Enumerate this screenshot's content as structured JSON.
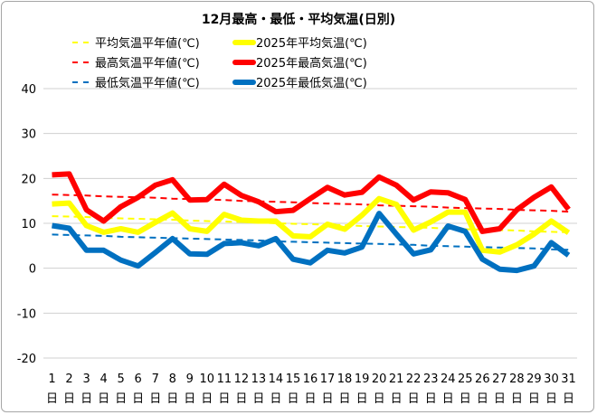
{
  "chart_data": {
    "type": "line",
    "title": "12月最高・最低・平均気温(日別)",
    "ylim": [
      -20,
      40
    ],
    "yticks": [
      -20,
      -10,
      0,
      10,
      20,
      30,
      40
    ],
    "grid": true,
    "legend_placement": "top",
    "categories": [
      "1",
      "2",
      "3",
      "4",
      "5",
      "6",
      "7",
      "8",
      "9",
      "10",
      "11",
      "12",
      "13",
      "14",
      "15",
      "16",
      "17",
      "18",
      "19",
      "20",
      "21",
      "22",
      "23",
      "24",
      "25",
      "26",
      "27",
      "28",
      "29",
      "30",
      "31"
    ],
    "category_suffix": "日",
    "series": [
      {
        "name": "平均気温平年値(℃)",
        "style": "dashed",
        "color": "#ffff00",
        "values": [
          11.6,
          11.5,
          11.4,
          11.2,
          11.1,
          11.0,
          10.9,
          10.8,
          10.6,
          10.5,
          10.4,
          10.3,
          10.2,
          10.0,
          9.9,
          9.8,
          9.7,
          9.6,
          9.4,
          9.3,
          9.2,
          9.1,
          9.0,
          8.8,
          8.7,
          8.6,
          8.5,
          8.4,
          8.2,
          8.1,
          8.0
        ]
      },
      {
        "name": "2025年平均気温(℃)",
        "style": "solid",
        "color": "#ffff00",
        "values": [
          14.3,
          14.5,
          9.5,
          8.0,
          8.8,
          8.0,
          10.2,
          12.3,
          8.8,
          8.2,
          12.0,
          10.7,
          10.5,
          10.5,
          7.2,
          7.0,
          9.8,
          8.7,
          11.8,
          15.5,
          14.2,
          8.5,
          10.3,
          12.5,
          12.5,
          4.0,
          3.6,
          5.2,
          7.6,
          10.5,
          7.9
        ]
      },
      {
        "name": "最高気温平年値(℃)",
        "style": "dashed",
        "color": "#ff0000",
        "values": [
          16.4,
          16.3,
          16.2,
          16.0,
          15.9,
          15.8,
          15.7,
          15.5,
          15.4,
          15.3,
          15.2,
          15.0,
          14.9,
          14.8,
          14.7,
          14.5,
          14.4,
          14.3,
          14.2,
          14.0,
          13.9,
          13.8,
          13.7,
          13.5,
          13.4,
          13.3,
          13.2,
          13.0,
          12.9,
          12.8,
          12.6
        ]
      },
      {
        "name": "2025年最高気温(℃)",
        "style": "solid",
        "color": "#ff0000",
        "values": [
          20.8,
          21.0,
          13.0,
          10.5,
          13.7,
          15.8,
          18.5,
          19.7,
          15.2,
          15.3,
          18.7,
          16.2,
          14.8,
          12.6,
          12.9,
          15.5,
          18.0,
          16.3,
          16.9,
          20.3,
          18.5,
          15.2,
          17.0,
          16.8,
          15.3,
          8.2,
          8.8,
          13.0,
          15.8,
          18.1,
          13.1
        ]
      },
      {
        "name": "最低気温平年値(℃)",
        "style": "dashed",
        "color": "#0070c0",
        "values": [
          7.5,
          7.4,
          7.3,
          7.2,
          7.0,
          6.9,
          6.8,
          6.7,
          6.6,
          6.5,
          6.4,
          6.3,
          6.2,
          6.0,
          5.9,
          5.8,
          5.7,
          5.6,
          5.5,
          5.4,
          5.3,
          5.2,
          5.0,
          4.9,
          4.8,
          4.7,
          4.6,
          4.5,
          4.4,
          4.2,
          4.1
        ]
      },
      {
        "name": "2025年最低気温(℃)",
        "style": "solid",
        "color": "#0070c0",
        "values": [
          9.5,
          8.9,
          4.0,
          4.0,
          1.8,
          0.5,
          3.5,
          6.6,
          3.2,
          3.1,
          5.5,
          5.7,
          5.0,
          6.6,
          2.0,
          1.2,
          4.0,
          3.4,
          4.7,
          12.2,
          7.6,
          3.2,
          4.1,
          9.4,
          8.2,
          2.0,
          -0.2,
          -0.5,
          0.5,
          5.7,
          2.9
        ]
      }
    ]
  }
}
